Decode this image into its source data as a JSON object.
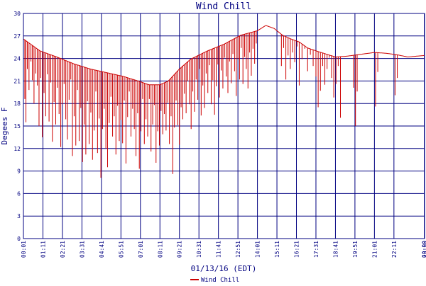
{
  "chart_data": {
    "type": "line",
    "title": "Wind Chill",
    "xlabel": "01/13/16 (EDT)",
    "ylabel": "Degees F",
    "ylim": [
      0,
      30
    ],
    "yticks": [
      0,
      3,
      6,
      9,
      12,
      15,
      18,
      21,
      24,
      27,
      30
    ],
    "xlim": [
      0,
      1440
    ],
    "xticks": [
      {
        "label": "00:01",
        "min": 0
      },
      {
        "label": "01:11",
        "min": 70
      },
      {
        "label": "02:21",
        "min": 140
      },
      {
        "label": "03:31",
        "min": 210
      },
      {
        "label": "04:41",
        "min": 280
      },
      {
        "label": "05:51",
        "min": 350
      },
      {
        "label": "07:01",
        "min": 420
      },
      {
        "label": "08:11",
        "min": 490
      },
      {
        "label": "09:21",
        "min": 560
      },
      {
        "label": "10:31",
        "min": 630
      },
      {
        "label": "11:41",
        "min": 700
      },
      {
        "label": "12:51",
        "min": 770
      },
      {
        "label": "14:01",
        "min": 840
      },
      {
        "label": "15:11",
        "min": 910
      },
      {
        "label": "16:21",
        "min": 980
      },
      {
        "label": "17:31",
        "min": 1050
      },
      {
        "label": "18:41",
        "min": 1120
      },
      {
        "label": "19:51",
        "min": 1190
      },
      {
        "label": "21:01",
        "min": 1260
      },
      {
        "label": "22:11",
        "min": 1330
      },
      {
        "label": "00:00",
        "min": 1439
      },
      {
        "label": "23:59",
        "min": 1440
      }
    ],
    "grid": true,
    "legend": "bottom",
    "colors": {
      "series": "#cc0000",
      "grid": "#000080",
      "axis_text": "#000080",
      "background": "#ffffff"
    },
    "series": [
      {
        "name": "Wind Chill",
        "baseline": [
          [
            0,
            26.6
          ],
          [
            60,
            25.0
          ],
          [
            120,
            24.2
          ],
          [
            180,
            23.3
          ],
          [
            240,
            22.6
          ],
          [
            300,
            22.1
          ],
          [
            360,
            21.6
          ],
          [
            420,
            20.9
          ],
          [
            450,
            20.5
          ],
          [
            490,
            20.5
          ],
          [
            520,
            21.0
          ],
          [
            560,
            22.6
          ],
          [
            600,
            23.9
          ],
          [
            660,
            25.0
          ],
          [
            720,
            25.9
          ],
          [
            780,
            27.1
          ],
          [
            840,
            27.7
          ],
          [
            870,
            28.4
          ],
          [
            900,
            28.0
          ],
          [
            930,
            27.1
          ],
          [
            960,
            26.6
          ],
          [
            990,
            26.2
          ],
          [
            1020,
            25.4
          ],
          [
            1060,
            24.9
          ],
          [
            1120,
            24.2
          ],
          [
            1160,
            24.3
          ],
          [
            1200,
            24.5
          ],
          [
            1260,
            24.8
          ],
          [
            1300,
            24.7
          ],
          [
            1340,
            24.5
          ],
          [
            1380,
            24.2
          ],
          [
            1440,
            24.4
          ]
        ],
        "dips": [
          [
            5,
            18.6
          ],
          [
            9,
            15.5
          ],
          [
            14,
            22.6
          ],
          [
            20,
            19.8
          ],
          [
            27,
            23.6
          ],
          [
            32,
            21.1
          ],
          [
            38,
            18.0
          ],
          [
            44,
            22.0
          ],
          [
            50,
            20.4
          ],
          [
            56,
            15.0
          ],
          [
            62,
            21.4
          ],
          [
            68,
            13.5
          ],
          [
            74,
            19.4
          ],
          [
            80,
            16.3
          ],
          [
            86,
            21.9
          ],
          [
            92,
            15.6
          ],
          [
            98,
            20.8
          ],
          [
            104,
            12.9
          ],
          [
            110,
            18.2
          ],
          [
            116,
            15.2
          ],
          [
            122,
            20.1
          ],
          [
            128,
            16.6
          ],
          [
            134,
            12.2
          ],
          [
            140,
            17.9
          ],
          [
            146,
            20.6
          ],
          [
            152,
            15.9
          ],
          [
            158,
            13.2
          ],
          [
            164,
            18.5
          ],
          [
            170,
            21.2
          ],
          [
            176,
            11.0
          ],
          [
            182,
            16.3
          ],
          [
            188,
            12.4
          ],
          [
            194,
            19.8
          ],
          [
            200,
            13.0
          ],
          [
            206,
            17.4
          ],
          [
            212,
            10.2
          ],
          [
            218,
            15.2
          ],
          [
            224,
            11.2
          ],
          [
            230,
            18.3
          ],
          [
            236,
            12.6
          ],
          [
            242,
            16.8
          ],
          [
            248,
            10.5
          ],
          [
            254,
            14.4
          ],
          [
            260,
            19.6
          ],
          [
            266,
            11.4
          ],
          [
            272,
            16.0
          ],
          [
            278,
            8.1
          ],
          [
            284,
            14.6
          ],
          [
            290,
            17.3
          ],
          [
            296,
            12.0
          ],
          [
            302,
            9.5
          ],
          [
            308,
            15.4
          ],
          [
            314,
            18.9
          ],
          [
            320,
            13.6
          ],
          [
            326,
            16.3
          ],
          [
            332,
            11.2
          ],
          [
            338,
            17.7
          ],
          [
            344,
            13.0
          ],
          [
            350,
            15.8
          ],
          [
            356,
            12.7
          ],
          [
            362,
            18.4
          ],
          [
            368,
            10.0
          ],
          [
            374,
            16.2
          ],
          [
            380,
            19.6
          ],
          [
            386,
            13.6
          ],
          [
            392,
            17.3
          ],
          [
            398,
            14.6
          ],
          [
            404,
            11.0
          ],
          [
            410,
            16.7
          ],
          [
            416,
            9.3
          ],
          [
            422,
            14.3
          ],
          [
            428,
            18.6
          ],
          [
            434,
            12.6
          ],
          [
            440,
            15.9
          ],
          [
            446,
            13.6
          ],
          [
            452,
            18.6
          ],
          [
            458,
            11.6
          ],
          [
            464,
            15.2
          ],
          [
            470,
            17.8
          ],
          [
            476,
            10.1
          ],
          [
            482,
            14.3
          ],
          [
            488,
            12.4
          ],
          [
            494,
            17.0
          ],
          [
            500,
            13.9
          ],
          [
            506,
            16.6
          ],
          [
            512,
            14.4
          ],
          [
            518,
            18.1
          ],
          [
            524,
            12.6
          ],
          [
            530,
            16.3
          ],
          [
            536,
            8.6
          ],
          [
            542,
            14.8
          ],
          [
            548,
            18.4
          ],
          [
            554,
            15.1
          ],
          [
            560,
            12.5
          ],
          [
            566,
            17.5
          ],
          [
            572,
            15.9
          ],
          [
            578,
            19.3
          ],
          [
            584,
            16.7
          ],
          [
            590,
            21.0
          ],
          [
            596,
            17.9
          ],
          [
            602,
            14.6
          ],
          [
            608,
            19.6
          ],
          [
            614,
            16.9
          ],
          [
            620,
            21.2
          ],
          [
            626,
            18.5
          ],
          [
            632,
            22.6
          ],
          [
            638,
            16.4
          ],
          [
            644,
            20.4
          ],
          [
            650,
            17.4
          ],
          [
            656,
            22.0
          ],
          [
            662,
            19.4
          ],
          [
            668,
            23.1
          ],
          [
            674,
            17.9
          ],
          [
            680,
            21.1
          ],
          [
            686,
            16.5
          ],
          [
            692,
            20.3
          ],
          [
            698,
            23.2
          ],
          [
            704,
            18.8
          ],
          [
            710,
            22.4
          ],
          [
            716,
            20.0
          ],
          [
            722,
            24.1
          ],
          [
            728,
            21.6
          ],
          [
            734,
            19.4
          ],
          [
            740,
            23.6
          ],
          [
            746,
            20.7
          ],
          [
            752,
            24.6
          ],
          [
            758,
            22.3
          ],
          [
            764,
            19.0
          ],
          [
            770,
            23.9
          ],
          [
            776,
            21.2
          ],
          [
            782,
            25.4
          ],
          [
            788,
            20.6
          ],
          [
            794,
            24.2
          ],
          [
            800,
            22.6
          ],
          [
            806,
            20.0
          ],
          [
            812,
            24.8
          ],
          [
            818,
            21.7
          ],
          [
            824,
            25.3
          ],
          [
            830,
            23.3
          ],
          [
            836,
            26.0
          ],
          [
            926,
            23.0
          ],
          [
            934,
            25.4
          ],
          [
            942,
            21.2
          ],
          [
            950,
            24.4
          ],
          [
            958,
            22.6
          ],
          [
            966,
            24.8
          ],
          [
            974,
            23.5
          ],
          [
            982,
            25.6
          ],
          [
            990,
            20.4
          ],
          [
            1000,
            23.9
          ],
          [
            1010,
            25.3
          ],
          [
            1020,
            22.3
          ],
          [
            1030,
            24.5
          ],
          [
            1040,
            23.0
          ],
          [
            1050,
            21.6
          ],
          [
            1058,
            17.5
          ],
          [
            1066,
            19.7
          ],
          [
            1074,
            23.0
          ],
          [
            1082,
            20.5
          ],
          [
            1090,
            22.6
          ],
          [
            1098,
            24.1
          ],
          [
            1106,
            21.4
          ],
          [
            1114,
            18.8
          ],
          [
            1122,
            20.6
          ],
          [
            1130,
            23.0
          ],
          [
            1138,
            16.1
          ],
          [
            1185,
            20.1
          ],
          [
            1192,
            15.0
          ],
          [
            1198,
            19.6
          ],
          [
            1264,
            17.6
          ],
          [
            1272,
            22.2
          ],
          [
            1334,
            19.1
          ],
          [
            1342,
            21.4
          ]
        ]
      }
    ]
  }
}
